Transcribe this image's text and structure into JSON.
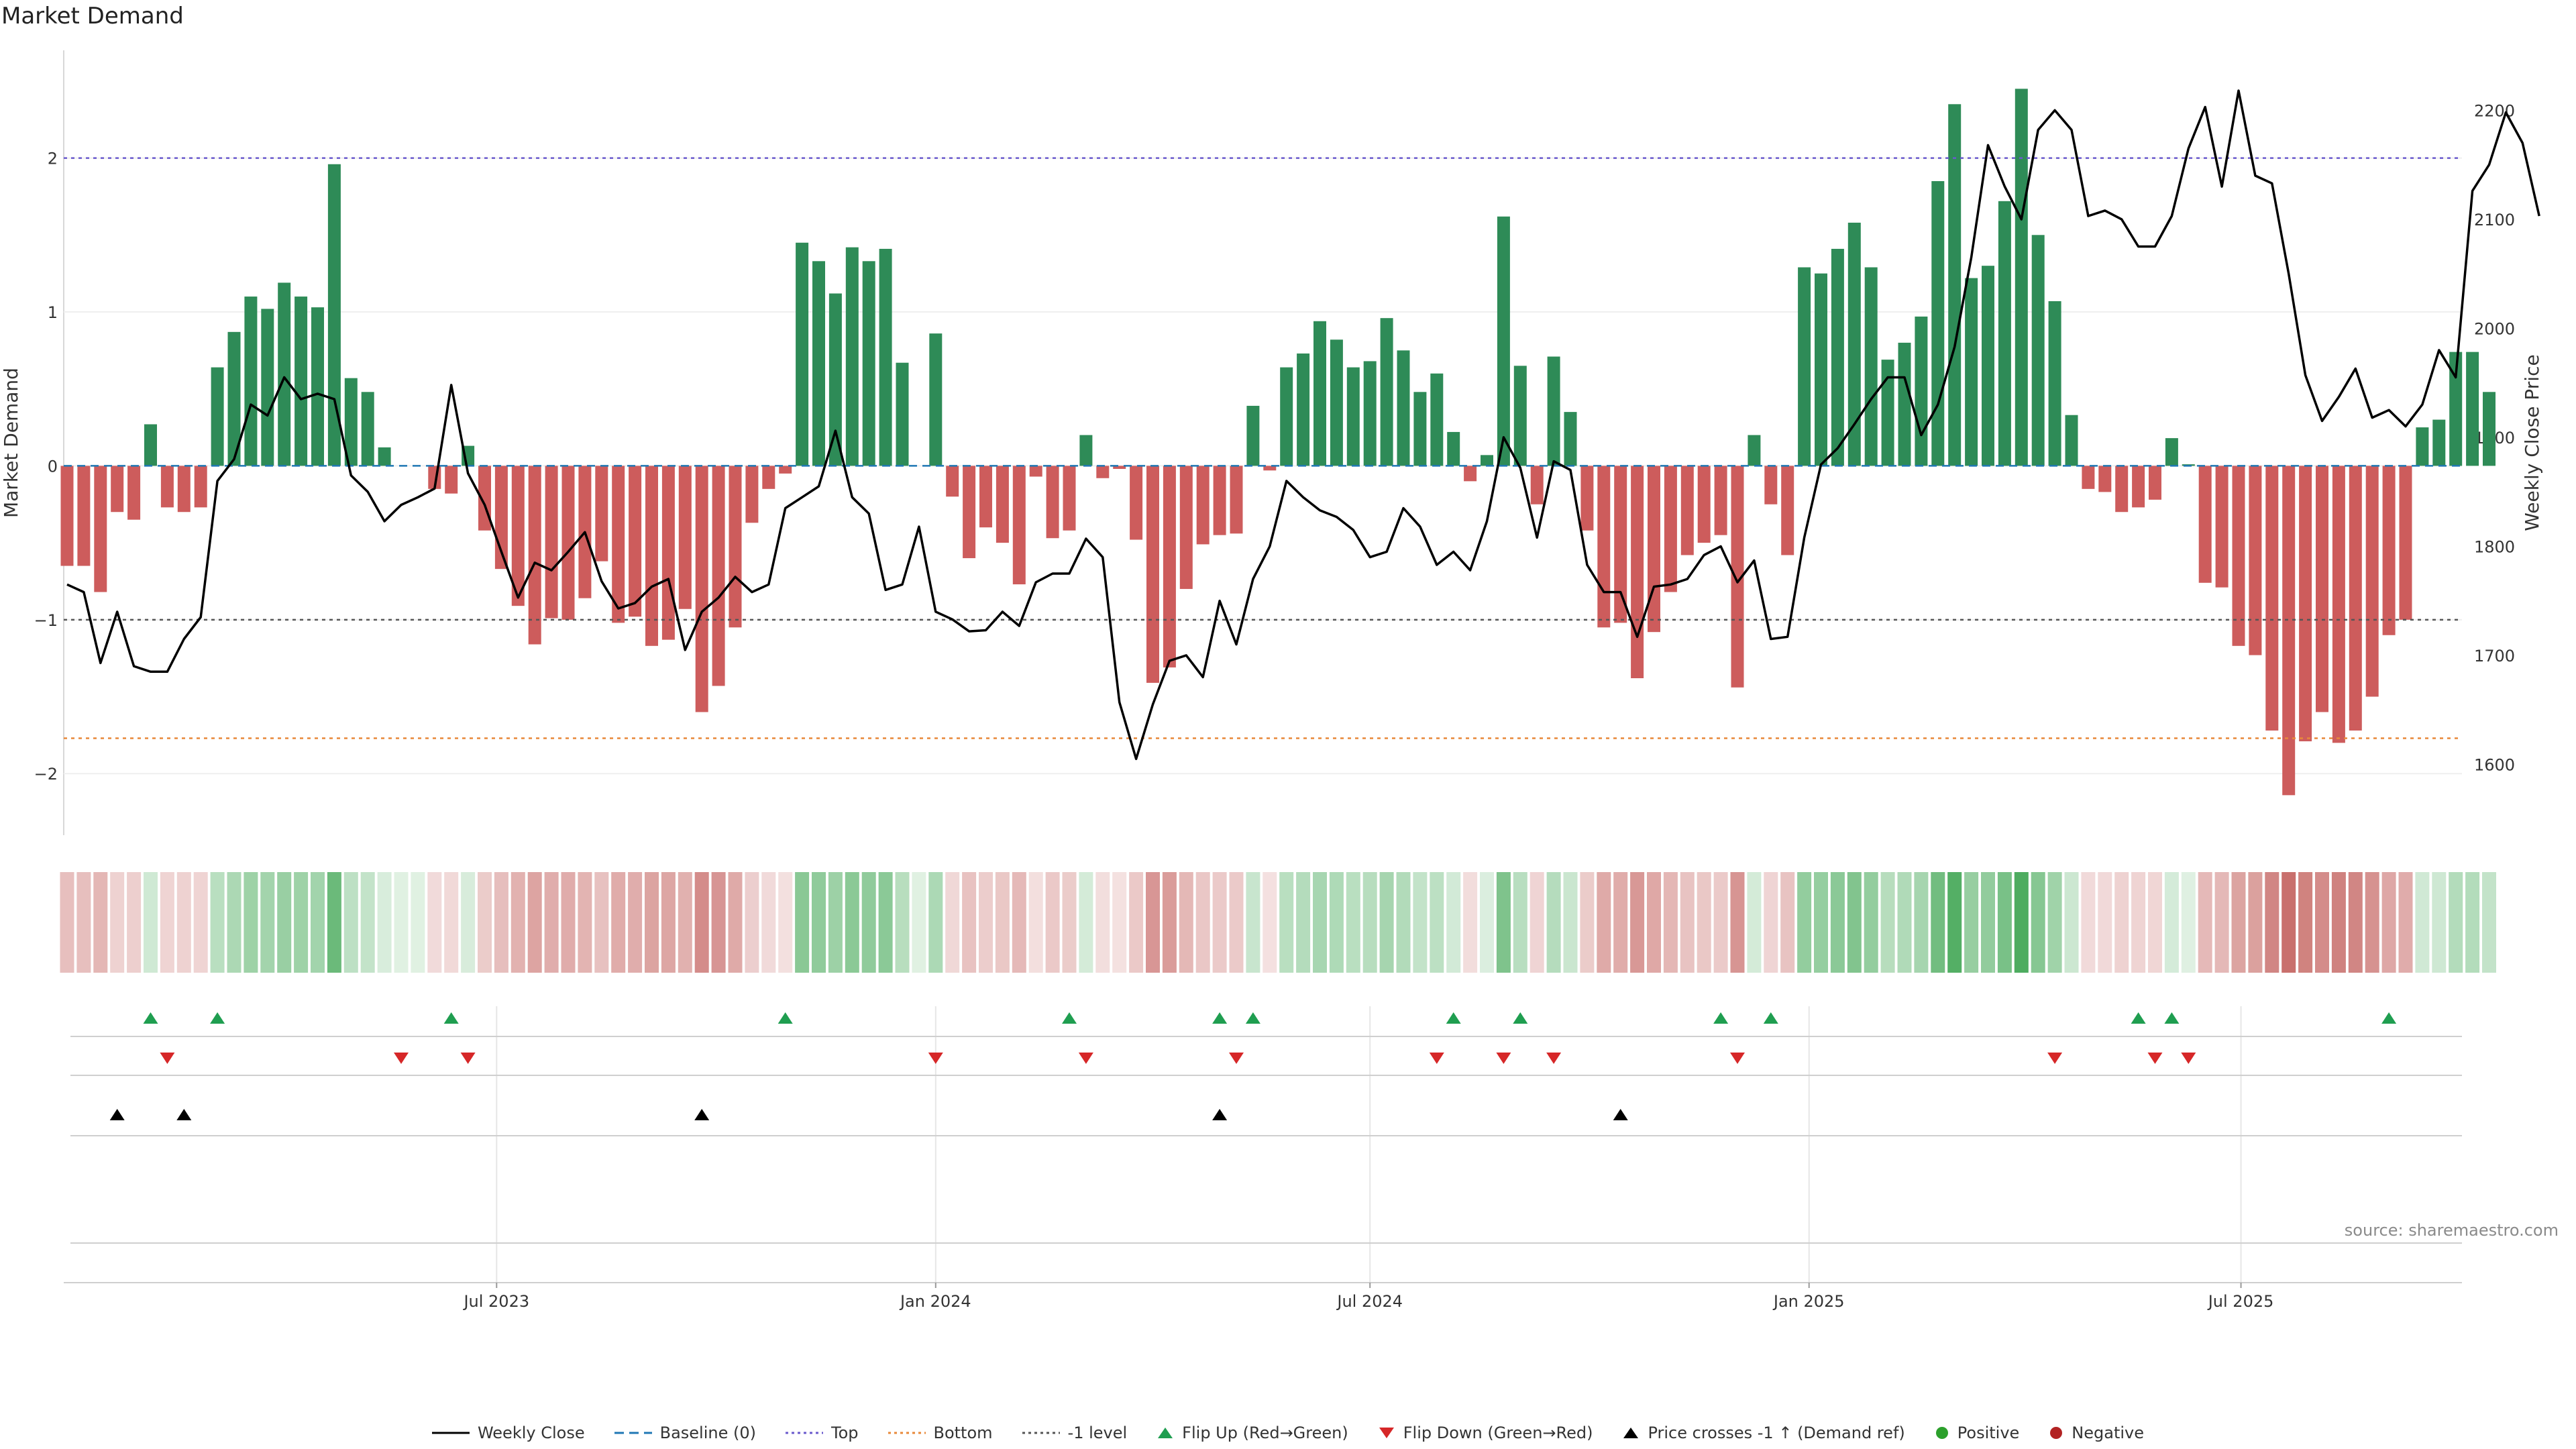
{
  "title": "Market Demand",
  "source": "source: sharemaestro.com",
  "colors": {
    "positive": "#2e8b57",
    "negative": "#cd5c5c",
    "price": "#000000",
    "top": "#6a5acd",
    "bottom": "#e8893a",
    "minus1": "#555555",
    "baseline": "#1f77b4",
    "flip_up": "#1f9e50",
    "flip_down": "#d62728",
    "cross": "#000000",
    "pos_dot": "#2ca02c",
    "neg_dot": "#b22222"
  },
  "chart_data": {
    "type": "bar",
    "title": "Market Demand",
    "ylabel": "Market Demand",
    "y2label": "Weekly Close Price",
    "ylim": [
      -2.4,
      2.7
    ],
    "y2lim": [
      1535,
      2255
    ],
    "yticks": [
      -2,
      -1,
      0,
      1,
      2
    ],
    "y2ticks": [
      1600,
      1700,
      1800,
      1900,
      2000,
      2100,
      2200
    ],
    "x_start": "2023-01-02",
    "x_end": "2025-11-17",
    "xticks": [
      {
        "date": "2023-07-01",
        "label": "Jul 2023"
      },
      {
        "date": "2024-01-01",
        "label": "Jan 2024"
      },
      {
        "date": "2024-07-01",
        "label": "Jul 2024"
      },
      {
        "date": "2025-01-01",
        "label": "Jan 2025"
      },
      {
        "date": "2025-07-01",
        "label": "Jul 2025"
      }
    ],
    "series": [
      {
        "name": "Market Demand",
        "type": "bar",
        "values": [
          -0.65,
          -0.65,
          -0.82,
          -0.3,
          -0.35,
          0.27,
          -0.27,
          -0.3,
          -0.27,
          0.64,
          0.87,
          1.1,
          1.02,
          1.19,
          1.1,
          1.03,
          1.96,
          0.57,
          0.48,
          0.12,
          0,
          0,
          -0.15,
          -0.18,
          0.13,
          -0.42,
          -0.67,
          -0.91,
          -1.16,
          -0.99,
          -1.0,
          -0.86,
          -0.62,
          -1.02,
          -0.98,
          -1.17,
          -1.13,
          -0.93,
          -1.6,
          -1.43,
          -1.05,
          -0.37,
          -0.15,
          -0.05,
          1.45,
          1.33,
          1.12,
          1.42,
          1.33,
          1.41,
          0.67,
          0,
          0.86,
          -0.2,
          -0.6,
          -0.4,
          -0.5,
          -0.77,
          -0.07,
          -0.47,
          -0.42,
          0.2,
          -0.08,
          -0.02,
          -0.48,
          -1.41,
          -1.31,
          -0.8,
          -0.51,
          -0.45,
          -0.44,
          0.39,
          -0.03,
          0.64,
          0.73,
          0.94,
          0.82,
          0.64,
          0.68,
          0.96,
          0.75,
          0.48,
          0.6,
          0.22,
          -0.1,
          0.07,
          1.62,
          0.65,
          -0.25,
          0.71,
          0.35,
          -0.42,
          -1.05,
          -1.02,
          -1.38,
          -1.08,
          -0.82,
          -0.58,
          -0.5,
          -0.45,
          -1.44,
          0.2,
          -0.25,
          -0.58,
          1.29,
          1.25,
          1.41,
          1.58,
          1.29,
          0.69,
          0.8,
          0.97,
          1.85,
          2.35,
          1.22,
          1.3,
          1.72,
          2.45,
          1.5,
          1.07,
          0.33,
          -0.15,
          -0.17,
          -0.3,
          -0.27,
          -0.22,
          0.18,
          0.01,
          -0.76,
          -0.79,
          -1.17,
          -1.23,
          -1.72,
          -2.14,
          -1.79,
          -1.6,
          -1.8,
          -1.72,
          -1.5,
          -1.1,
          -1.0,
          0.25,
          0.3,
          0.74,
          0.74,
          0.48
        ]
      },
      {
        "name": "Weekly Close",
        "type": "line",
        "values": [
          1765,
          1758,
          1693,
          1740,
          1690,
          1685,
          1685,
          1715,
          1735,
          1860,
          1880,
          1930,
          1920,
          1955,
          1935,
          1940,
          1935,
          1865,
          1850,
          1823,
          1838,
          1845,
          1853,
          1948,
          1867,
          1838,
          1795,
          1753,
          1785,
          1778,
          1795,
          1813,
          1768,
          1743,
          1748,
          1763,
          1770,
          1705,
          1740,
          1753,
          1772,
          1758,
          1765,
          1835,
          1845,
          1855,
          1906,
          1845,
          1830,
          1760,
          1765,
          1818,
          1740,
          1733,
          1722,
          1723,
          1740,
          1727,
          1767,
          1775,
          1775,
          1807,
          1790,
          1657,
          1605,
          1655,
          1695,
          1700,
          1680,
          1750,
          1710,
          1770,
          1800,
          1860,
          1845,
          1833,
          1827,
          1815,
          1790,
          1795,
          1835,
          1818,
          1783,
          1795,
          1778,
          1823,
          1900,
          1872,
          1808,
          1878,
          1870,
          1783,
          1758,
          1758,
          1717,
          1763,
          1765,
          1770,
          1792,
          1800,
          1767,
          1787,
          1715,
          1717,
          1808,
          1875,
          1890,
          1912,
          1935,
          1955,
          1955,
          1902,
          1930,
          1983,
          2065,
          2168,
          2130,
          2100,
          2182,
          2200,
          2182,
          2103,
          2108,
          2100,
          2075,
          2075,
          2103,
          2165,
          2203,
          2130,
          2218,
          2140,
          2133,
          2050,
          1957,
          1915,
          1937,
          1963,
          1918,
          1925,
          1910,
          1930,
          1980,
          1955,
          2126,
          2150,
          2198,
          2170,
          2103
        ]
      }
    ],
    "reference_lines": [
      {
        "name": "Top",
        "value": 2.0
      },
      {
        "name": "Baseline (0)",
        "value": 0
      },
      {
        "name": "-1 level",
        "value": -1.0
      },
      {
        "name": "Bottom",
        "value": -1.77
      }
    ],
    "flip_up_weeks": [
      5,
      9,
      23,
      43,
      60,
      69,
      71,
      83,
      87,
      99,
      102,
      124,
      126,
      139
    ],
    "flip_down_weeks": [
      6,
      20,
      24,
      52,
      61,
      70,
      82,
      86,
      89,
      100,
      119,
      125,
      127
    ],
    "price_cross_weeks": [
      3,
      7,
      38,
      69,
      93
    ]
  },
  "legend": [
    {
      "label": "Weekly Close",
      "icon": "solid-line"
    },
    {
      "label": "Baseline (0)",
      "icon": "dashed-line"
    },
    {
      "label": "Top",
      "icon": "dotted-line"
    },
    {
      "label": "Bottom",
      "icon": "dotted-line"
    },
    {
      "label": "-1 level",
      "icon": "dotted-line"
    },
    {
      "label": "Flip Up (Red→Green)",
      "icon": "triangle-up"
    },
    {
      "label": "Flip Down (Green→Red)",
      "icon": "triangle-down"
    },
    {
      "label": "Price crosses -1 ↑ (Demand ref)",
      "icon": "triangle-up"
    },
    {
      "label": "Positive",
      "icon": "circle"
    },
    {
      "label": "Negative",
      "icon": "circle"
    }
  ]
}
